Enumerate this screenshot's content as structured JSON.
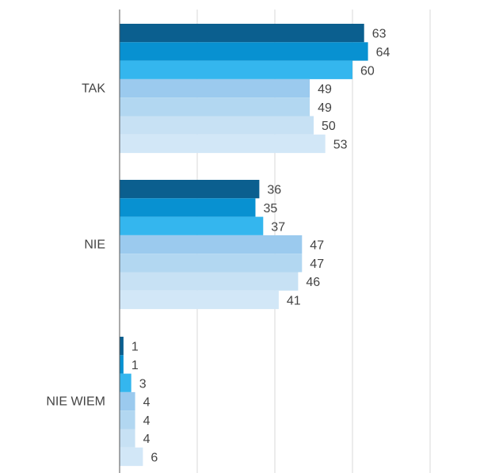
{
  "chart_data": {
    "type": "bar",
    "orientation": "horizontal",
    "categories": [
      "TAK",
      "NIE",
      "NIE WIEM"
    ],
    "series": [
      {
        "values": [
          63,
          36,
          1
        ],
        "color": "#0b5f8f"
      },
      {
        "values": [
          64,
          35,
          1
        ],
        "color": "#0891d1"
      },
      {
        "values": [
          60,
          37,
          3
        ],
        "color": "#34b6ee"
      },
      {
        "values": [
          49,
          47,
          4
        ],
        "color": "#9bcaee"
      },
      {
        "values": [
          49,
          47,
          4
        ],
        "color": "#b2d7f1"
      },
      {
        "values": [
          50,
          46,
          4
        ],
        "color": "#c7e1f4"
      },
      {
        "values": [
          53,
          41,
          6
        ],
        "color": "#d2e7f7"
      }
    ],
    "xlim": [
      0,
      100
    ],
    "gridlines": [
      20,
      40,
      60,
      80
    ],
    "grid": true,
    "legend": "none",
    "data_labels": true
  }
}
